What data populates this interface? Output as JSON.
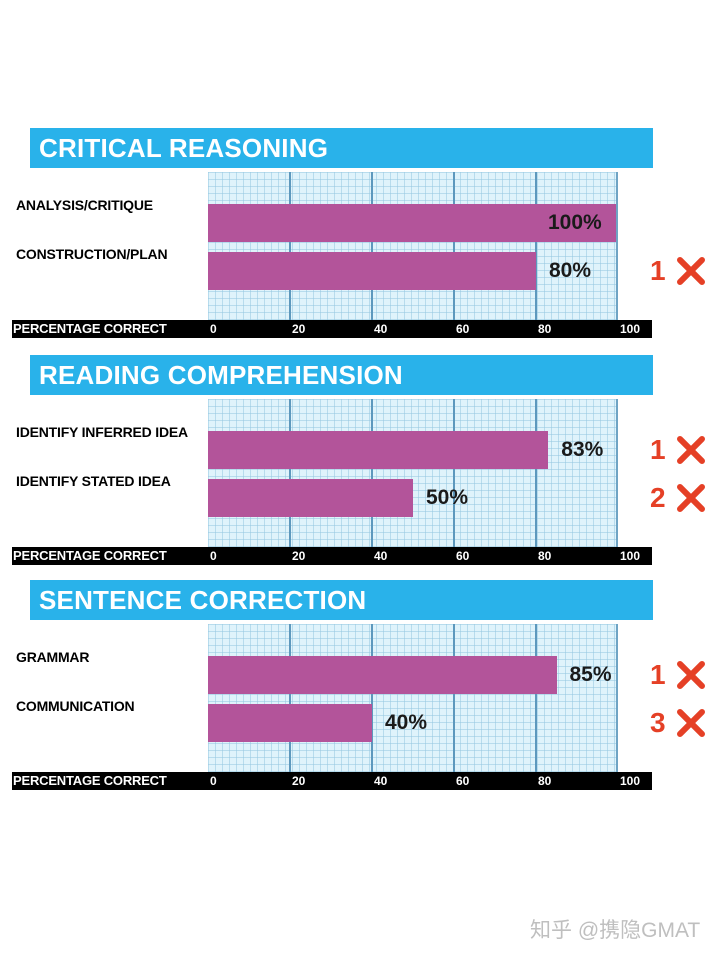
{
  "chart_data": [
    {
      "type": "bar",
      "orientation": "horizontal",
      "title": "CRITICAL REASONING",
      "categories": [
        "ANALYSIS/CRITIQUE",
        "CONSTRUCTION/PLAN"
      ],
      "values": [
        100,
        80
      ],
      "value_labels": [
        "100%",
        "80%"
      ],
      "mistakes": [
        null,
        "1"
      ],
      "xlabel": "PERCENTAGE CORRECT",
      "xticks": [
        "0",
        "20",
        "40",
        "60",
        "80",
        "100"
      ],
      "xlim": [
        0,
        100
      ],
      "grid": true
    },
    {
      "type": "bar",
      "orientation": "horizontal",
      "title": "READING COMPREHENSION",
      "categories": [
        "IDENTIFY INFERRED IDEA",
        "IDENTIFY STATED IDEA"
      ],
      "values": [
        83,
        50
      ],
      "value_labels": [
        "83%",
        "50%"
      ],
      "mistakes": [
        "1",
        "2"
      ],
      "xlabel": "PERCENTAGE CORRECT",
      "xticks": [
        "0",
        "20",
        "40",
        "60",
        "80",
        "100"
      ],
      "xlim": [
        0,
        100
      ],
      "grid": true
    },
    {
      "type": "bar",
      "orientation": "horizontal",
      "title": "SENTENCE CORRECTION",
      "categories": [
        "GRAMMAR",
        "COMMUNICATION"
      ],
      "values": [
        85,
        40
      ],
      "value_labels": [
        "85%",
        "40%"
      ],
      "mistakes": [
        "1",
        "3"
      ],
      "xlabel": "PERCENTAGE CORRECT",
      "xticks": [
        "0",
        "20",
        "40",
        "60",
        "80",
        "100"
      ],
      "xlim": [
        0,
        100
      ],
      "grid": true
    }
  ],
  "colors": {
    "header": "#29b2ea",
    "bar": "#b3549a",
    "plot_bg": "#dff3fb",
    "axis_bar": "#000000",
    "mistake": "#e54026"
  },
  "mistake_icon": "x-mark-icon",
  "watermark": "知乎 @携隐GMAT"
}
